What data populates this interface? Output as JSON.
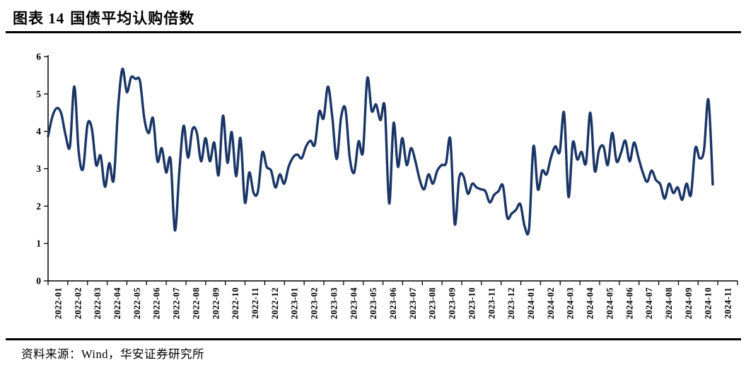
{
  "header": {
    "figure_label": "图表 14",
    "title": "国债平均认购倍数"
  },
  "source_note": "资料来源：Wind，华安证券研究所",
  "colors": {
    "line": "#1A3666",
    "axis": "#000000",
    "background": "#ffffff",
    "rule": "#000000"
  },
  "chart_data": {
    "type": "line",
    "title": "国债平均认购倍数",
    "xlabel": "",
    "ylabel": "",
    "ylim": [
      0,
      6
    ],
    "y_ticks": [
      0,
      1,
      2,
      3,
      4,
      5,
      6
    ],
    "grid": false,
    "legend_position": "none",
    "x_tick_labels": [
      "2022-01",
      "2022-02",
      "2022-03",
      "2022-04",
      "2022-05",
      "2022-06",
      "2022-07",
      "2022-08",
      "2022-09",
      "2022-10",
      "2022-11",
      "2022-12",
      "2023-01",
      "2023-02",
      "2023-03",
      "2023-04",
      "2023-05",
      "2023-06",
      "2023-07",
      "2023-08",
      "2023-09",
      "2023-10",
      "2023-11",
      "2023-12",
      "2024-01",
      "2024-02",
      "2024-03",
      "2024-04",
      "2024-05",
      "2024-06",
      "2024-07",
      "2024-08",
      "2024-09",
      "2024-10",
      "2024-11"
    ],
    "series": [
      {
        "name": "国债平均认购倍数",
        "color": "#1A3666",
        "x_unit": "week (2022-01 through 2024-11, evenly spaced)",
        "values": [
          3.87,
          4.4,
          4.62,
          4.48,
          3.9,
          3.6,
          5.2,
          3.45,
          3.0,
          4.18,
          4.08,
          3.1,
          3.35,
          2.52,
          3.15,
          2.7,
          4.6,
          5.67,
          5.05,
          5.45,
          5.4,
          5.35,
          4.35,
          3.95,
          4.35,
          3.2,
          3.55,
          2.9,
          3.25,
          1.35,
          2.9,
          4.15,
          3.3,
          4.05,
          3.97,
          3.2,
          3.82,
          3.2,
          3.7,
          2.83,
          4.42,
          3.16,
          3.98,
          2.8,
          3.82,
          2.1,
          2.9,
          2.35,
          2.4,
          3.44,
          3.05,
          2.95,
          2.5,
          2.85,
          2.6,
          3.05,
          3.3,
          3.38,
          3.28,
          3.6,
          3.75,
          3.65,
          4.53,
          4.35,
          5.2,
          4.37,
          3.26,
          4.37,
          4.6,
          3.28,
          2.9,
          3.73,
          3.45,
          5.42,
          4.55,
          4.72,
          4.3,
          4.65,
          2.07,
          4.22,
          3.05,
          3.82,
          3.1,
          3.55,
          3.2,
          2.7,
          2.45,
          2.85,
          2.6,
          2.95,
          3.1,
          3.15,
          3.78,
          1.52,
          2.75,
          2.8,
          2.33,
          2.6,
          2.5,
          2.45,
          2.4,
          2.1,
          2.3,
          2.4,
          2.55,
          1.7,
          1.8,
          1.9,
          2.05,
          1.45,
          1.42,
          3.6,
          2.45,
          2.95,
          2.85,
          3.3,
          3.6,
          3.45,
          4.5,
          2.25,
          3.7,
          3.25,
          3.45,
          3.15,
          4.5,
          2.95,
          3.5,
          3.6,
          3.1,
          3.96,
          3.2,
          3.42,
          3.75,
          3.2,
          3.7,
          3.3,
          2.9,
          2.65,
          2.95,
          2.7,
          2.58,
          2.2,
          2.6,
          2.35,
          2.5,
          2.17,
          2.6,
          2.3,
          3.55,
          3.28,
          3.5,
          4.85,
          2.58
        ]
      }
    ]
  }
}
